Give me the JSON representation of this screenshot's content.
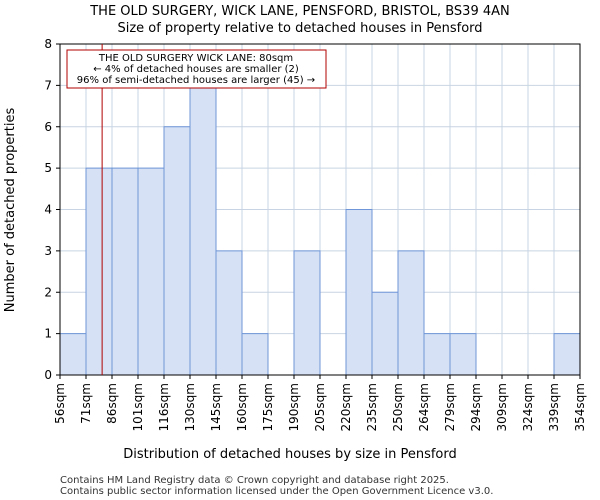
{
  "chart_data": {
    "type": "bar",
    "title": "THE OLD SURGERY, WICK LANE, PENSFORD, BRISTOL, BS39 4AN",
    "subtitle": "Size of property relative to detached houses in Pensford",
    "xlabel": "Distribution of detached houses by size in Pensford",
    "ylabel": "Number of detached properties",
    "x_tick_labels": [
      "56sqm",
      "71sqm",
      "86sqm",
      "101sqm",
      "116sqm",
      "130sqm",
      "145sqm",
      "160sqm",
      "175sqm",
      "190sqm",
      "205sqm",
      "220sqm",
      "235sqm",
      "250sqm",
      "264sqm",
      "279sqm",
      "294sqm",
      "309sqm",
      "324sqm",
      "339sqm",
      "354sqm"
    ],
    "values": [
      1,
      5,
      5,
      5,
      6,
      7,
      3,
      1,
      0,
      3,
      0,
      4,
      2,
      3,
      1,
      1,
      0,
      0,
      0,
      1
    ],
    "y_ticks": [
      0,
      1,
      2,
      3,
      4,
      5,
      6,
      7,
      8
    ],
    "ylim": [
      0,
      8
    ],
    "grid": true,
    "marker": {
      "value_sqm": 80,
      "position_in_bins": 1.62,
      "label_line1": "THE OLD SURGERY WICK LANE: 80sqm",
      "label_line2": "← 4% of detached houses are smaller (2)",
      "label_line3": "96% of semi-detached houses are larger (45) →"
    },
    "colors": {
      "bar_fill": "#d6e1f5",
      "bar_stroke": "#6f96d8",
      "marker": "#b00000",
      "grid": "#c8d4e3"
    }
  },
  "footer": {
    "line1": "Contains HM Land Registry data © Crown copyright and database right 2025.",
    "line2": "Contains public sector information licensed under the Open Government Licence v3.0."
  }
}
